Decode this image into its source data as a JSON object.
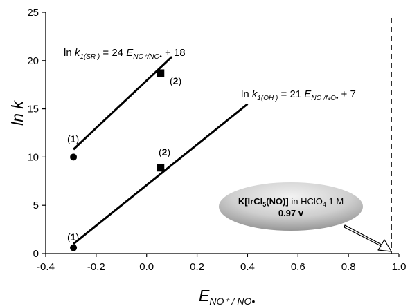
{
  "chart_data": {
    "type": "scatter",
    "title": "",
    "xlim": [
      -0.4,
      1.0
    ],
    "ylim": [
      0,
      25
    ],
    "x_ticks": [
      "-0.4",
      "-0.2",
      "0.0",
      "0.2",
      "0.4",
      "0.6",
      "0.8",
      "1.0"
    ],
    "y_ticks": [
      "0",
      "5",
      "10",
      "15",
      "20",
      "25"
    ],
    "x_ticks_values": [
      -0.4,
      -0.2,
      0.0,
      0.2,
      0.4,
      0.6,
      0.8,
      1.0
    ],
    "y_ticks_values": [
      0,
      5,
      10,
      15,
      20,
      25
    ],
    "xlabel": {
      "main": "E",
      "sub": "NO⁺ / NO•"
    },
    "ylabel": "ln k",
    "grid": false,
    "series": [
      {
        "fit_line": {
          "x": [
            -0.29,
            0.1
          ],
          "y": [
            10.8,
            20.4
          ]
        },
        "equation": {
          "lead": "ln ",
          "k": "k",
          "k_sub": "1(SR )",
          "mid": " = 24 ",
          "E": "E",
          "E_sub": "NO⁺/NO•",
          "tail": " + 18"
        },
        "points": [
          {
            "x": -0.29,
            "y": 10.0,
            "marker": "circle",
            "label_open": "(",
            "label_num": "1",
            "label_close": ")"
          },
          {
            "x": 0.055,
            "y": 18.7,
            "marker": "square",
            "label_open": "(",
            "label_num": "2",
            "label_close": ")"
          }
        ]
      },
      {
        "fit_line": {
          "x": [
            -0.29,
            0.4
          ],
          "y": [
            1.0,
            15.5
          ]
        },
        "equation": {
          "lead": "ln ",
          "k": "k",
          "k_sub": "1(OH )",
          "mid": " = 21 ",
          "E": "E",
          "E_sub": "NO /NO•",
          "tail": " + 7"
        },
        "points": [
          {
            "x": -0.29,
            "y": 0.6,
            "marker": "circle",
            "label_open": "(",
            "label_num": "1",
            "label_close": ")"
          },
          {
            "x": 0.055,
            "y": 8.9,
            "marker": "square",
            "label_open": "(",
            "label_num": "2",
            "label_close": ")"
          }
        ]
      }
    ],
    "reference_line": {
      "x": 0.97,
      "style": "dashed"
    },
    "callout": {
      "line1_bold_a": "K[IrCl",
      "line1_bold_sub": "5",
      "line1_bold_b": "(NO)]",
      "line1_normal_a": " in HClO",
      "line1_normal_sub": "4",
      "line1_normal_b": " 1 M",
      "line2_bold": "0.97 v",
      "colors": {
        "fill_light": "#ededed",
        "fill_dark": "#8c8c8c"
      }
    }
  }
}
